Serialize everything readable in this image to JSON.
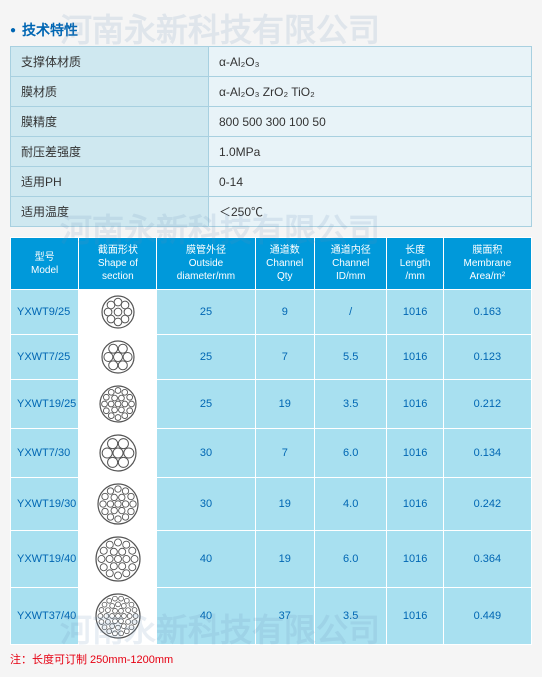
{
  "watermark_text": "河南永新科技有限公司",
  "section_title": "技术特性",
  "props": [
    {
      "label": "支撑体材质",
      "value": "α-Al₂O₃"
    },
    {
      "label": "膜材质",
      "value": "α-Al₂O₃  ZrO₂  TiO₂"
    },
    {
      "label": "膜精度",
      "value": "800   500   300  100   50"
    },
    {
      "label": "耐压差强度",
      "value": "1.0MPa"
    },
    {
      "label": "适用PH",
      "value": "0-14"
    },
    {
      "label": "适用温度",
      "value": "＜250℃"
    }
  ],
  "spec_headers": [
    {
      "cn": "型号",
      "en": "Model"
    },
    {
      "cn": "截面形状",
      "en": "Shape of section"
    },
    {
      "cn": "膜管外径",
      "en": "Outside diameter/mm"
    },
    {
      "cn": "通道数",
      "en": "Channel Qty"
    },
    {
      "cn": "通道内径",
      "en": "Channel ID/mm"
    },
    {
      "cn": "长度",
      "en": "Length /mm"
    },
    {
      "cn": "膜面积",
      "en": "Membrane Area/m²"
    }
  ],
  "spec_rows": [
    {
      "model": "YXWT9/25",
      "shape_n": 9,
      "shape_r": 16,
      "dia": "25",
      "qty": "9",
      "id": "/",
      "len": "1016",
      "area": "0.163"
    },
    {
      "model": "YXWT7/25",
      "shape_n": 7,
      "shape_r": 16,
      "dia": "25",
      "qty": "7",
      "id": "5.5",
      "len": "1016",
      "area": "0.123"
    },
    {
      "model": "YXWT19/25",
      "shape_n": 19,
      "shape_r": 18,
      "dia": "25",
      "qty": "19",
      "id": "3.5",
      "len": "1016",
      "area": "0.212"
    },
    {
      "model": "YXWT7/30",
      "shape_n": 7,
      "shape_r": 18,
      "dia": "30",
      "qty": "7",
      "id": "6.0",
      "len": "1016",
      "area": "0.134"
    },
    {
      "model": "YXWT19/30",
      "shape_n": 19,
      "shape_r": 20,
      "dia": "30",
      "qty": "19",
      "id": "4.0",
      "len": "1016",
      "area": "0.242"
    },
    {
      "model": "YXWT19/40",
      "shape_n": 19,
      "shape_r": 22,
      "dia": "40",
      "qty": "19",
      "id": "6.0",
      "len": "1016",
      "area": "0.364"
    },
    {
      "model": "YXWT37/40",
      "shape_n": 37,
      "shape_r": 22,
      "dia": "40",
      "qty": "37",
      "id": "3.5",
      "len": "1016",
      "area": "0.449"
    }
  ],
  "footnote": "注：长度可订制 250mm-1200mm",
  "colors": {
    "header_bg": "#0099da",
    "cell_bg": "#a8e0f0",
    "props_label_bg": "#cfe8f0",
    "props_value_bg": "#e8f3f8",
    "accent": "#0066b3",
    "footnote": "#e60012",
    "shape_stroke": "#555"
  }
}
